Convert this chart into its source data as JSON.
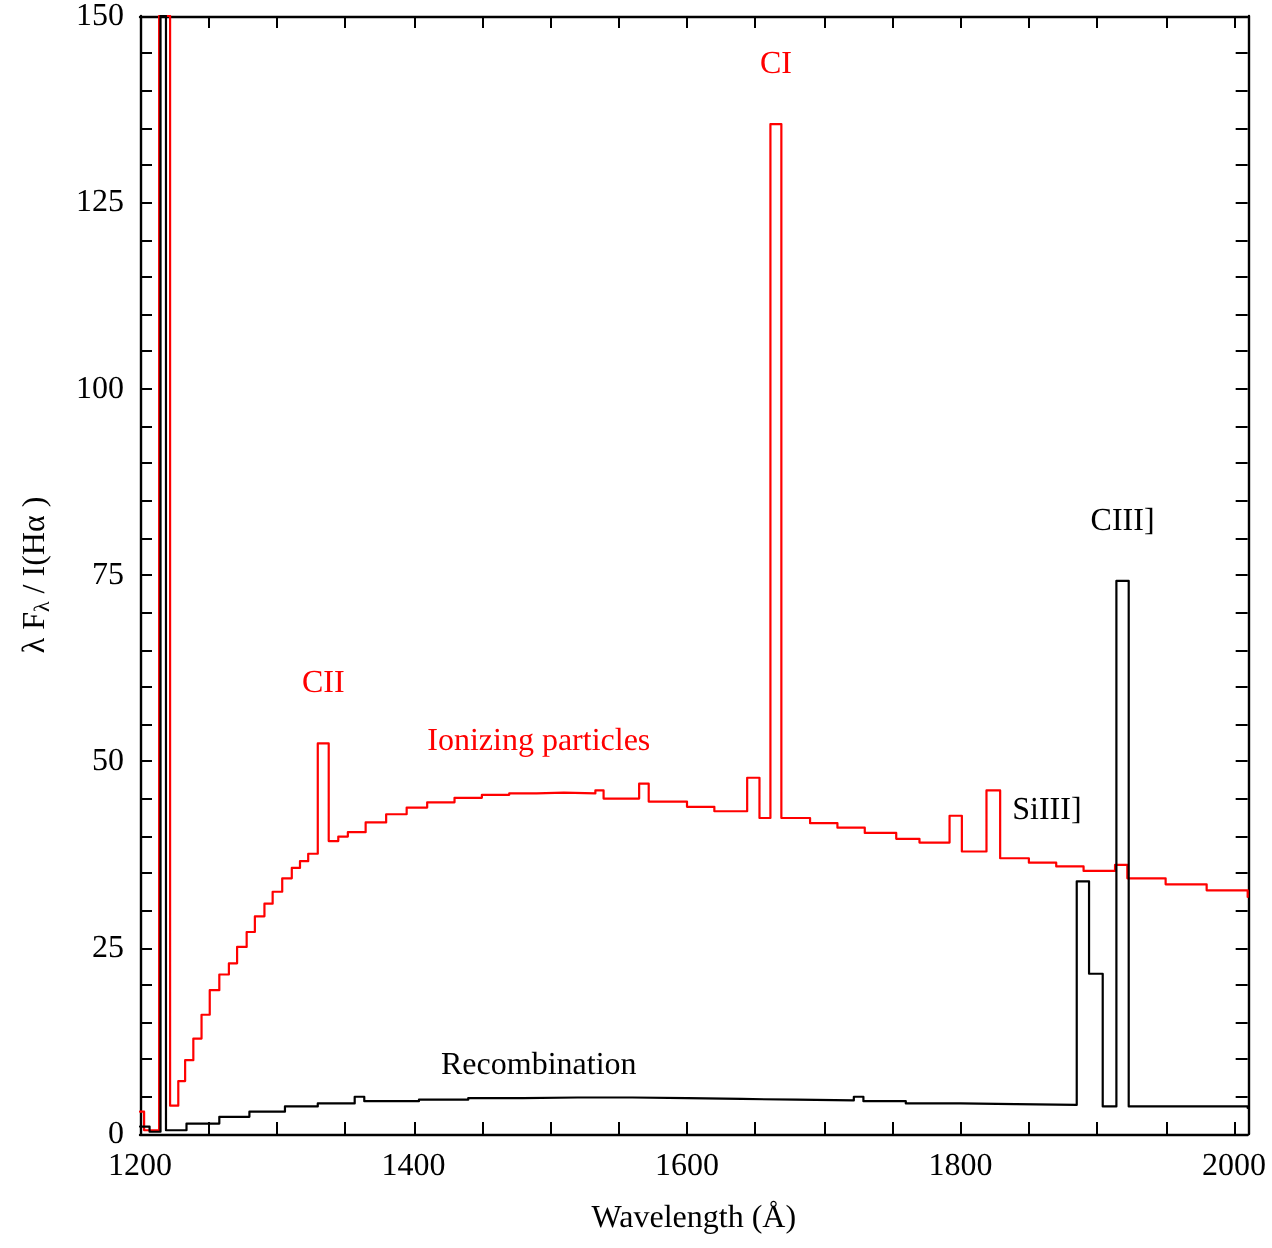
{
  "chart_data": {
    "type": "step",
    "xlabel": "Wavelength (Å)",
    "ylabel": "λ F$_{λ}$ / I(Hα )",
    "xlim": [
      1200,
      2010
    ],
    "ylim": [
      0,
      150
    ],
    "xticks": [
      1200,
      {
        "value": 1250,
        "label": null
      },
      1400,
      {
        "value": 1300,
        "label": null
      },
      {
        "value": 1350,
        "label": null
      },
      {
        "value": 1450,
        "label": null
      },
      1600,
      {
        "value": 1500,
        "label": null
      },
      {
        "value": 1550,
        "label": null
      },
      {
        "value": 1650,
        "label": null
      },
      1800,
      {
        "value": 1700,
        "label": null
      },
      {
        "value": 1750,
        "label": null
      },
      {
        "value": 1850,
        "label": null
      },
      2000,
      {
        "value": 1900,
        "label": null
      },
      {
        "value": 1950,
        "label": null
      }
    ],
    "yticks": [
      0,
      25,
      50,
      75,
      100,
      125,
      150,
      {
        "value": 5,
        "label": null
      },
      {
        "value": 10,
        "label": null
      },
      {
        "value": 15,
        "label": null
      },
      {
        "value": 20,
        "label": null
      },
      {
        "value": 30,
        "label": null
      },
      {
        "value": 35,
        "label": null
      },
      {
        "value": 40,
        "label": null
      },
      {
        "value": 45,
        "label": null
      },
      {
        "value": 55,
        "label": null
      },
      {
        "value": 60,
        "label": null
      },
      {
        "value": 65,
        "label": null
      },
      {
        "value": 70,
        "label": null
      },
      {
        "value": 80,
        "label": null
      },
      {
        "value": 85,
        "label": null
      },
      {
        "value": 90,
        "label": null
      },
      {
        "value": 95,
        "label": null
      },
      {
        "value": 105,
        "label": null
      },
      {
        "value": 110,
        "label": null
      },
      {
        "value": 115,
        "label": null
      },
      {
        "value": 120,
        "label": null
      },
      {
        "value": 130,
        "label": null
      },
      {
        "value": 135,
        "label": null
      },
      {
        "value": 140,
        "label": null
      },
      {
        "value": 145,
        "label": null
      }
    ],
    "grid": false,
    "legend": false,
    "marker": "none",
    "line_style": "solid",
    "series": [
      {
        "name": "Ionizing particles",
        "color": "#ff0000",
        "x": [
          1200,
          1203,
          1214,
          1222,
          1228,
          1233,
          1239,
          1245,
          1251,
          1258,
          1265,
          1271,
          1278,
          1284,
          1291,
          1297,
          1304,
          1311,
          1317,
          1323,
          1330,
          1338,
          1345,
          1352,
          1365,
          1380,
          1395,
          1410,
          1430,
          1450,
          1470,
          1490,
          1510,
          1533,
          1539,
          1565,
          1572,
          1600,
          1620,
          1644,
          1653,
          1661,
          1669,
          1690,
          1710,
          1730,
          1753,
          1770,
          1792,
          1801,
          1819,
          1829,
          1850,
          1870,
          1890,
          1913,
          1922,
          1950,
          1980,
          2010
        ],
        "values": [
          3,
          0.5,
          150,
          3.8,
          7.1,
          9.9,
          12.8,
          16.0,
          19.3,
          21.4,
          22.9,
          25.1,
          27.1,
          29.2,
          30.9,
          32.5,
          34.3,
          35.7,
          36.6,
          37.6,
          52.4,
          39.3,
          39.9,
          40.5,
          41.8,
          42.9,
          43.8,
          44.5,
          45.1,
          45.5,
          45.7,
          45.8,
          45.7,
          46.1,
          45.0,
          47.0,
          44.6,
          43.9,
          43.3,
          47.8,
          42.4,
          135.5,
          42.4,
          41.7,
          41.1,
          40.4,
          39.6,
          39.1,
          42.7,
          37.9,
          46.1,
          37.0,
          36.4,
          35.9,
          35.3,
          36.1,
          34.3,
          33.5,
          32.7,
          31.8
        ]
      },
      {
        "name": "Recombination",
        "color": "#000000",
        "x": [
          1200,
          1207,
          1215,
          1219,
          1234,
          1258,
          1280,
          1306,
          1330,
          1357,
          1364,
          1404,
          1440,
          1480,
          1520,
          1560,
          1600,
          1640,
          1680,
          1722,
          1729,
          1760,
          1800,
          1840,
          1885,
          1894,
          1904,
          1914,
          1923,
          2010
        ],
        "values": [
          1,
          0.3,
          150,
          0.5,
          1.4,
          2.3,
          3.0,
          3.7,
          4.1,
          5.0,
          4.4,
          4.6,
          4.8,
          4.9,
          4.9,
          4.8,
          4.7,
          4.6,
          4.5,
          5.0,
          4.4,
          4.1,
          4.0,
          3.9,
          33.9,
          21.5,
          3.7,
          74.2,
          3.7,
          3.5
        ]
      }
    ],
    "annotations": [
      {
        "text": "CII",
        "x": 1330,
        "y": 52.4
      },
      {
        "text": "CI",
        "x": 1661,
        "y": 135.5
      },
      {
        "text": "SiIII]",
        "x": 1885,
        "y": 33.9
      },
      {
        "text": "CIII]",
        "x": 1914,
        "y": 74.2
      }
    ]
  }
}
